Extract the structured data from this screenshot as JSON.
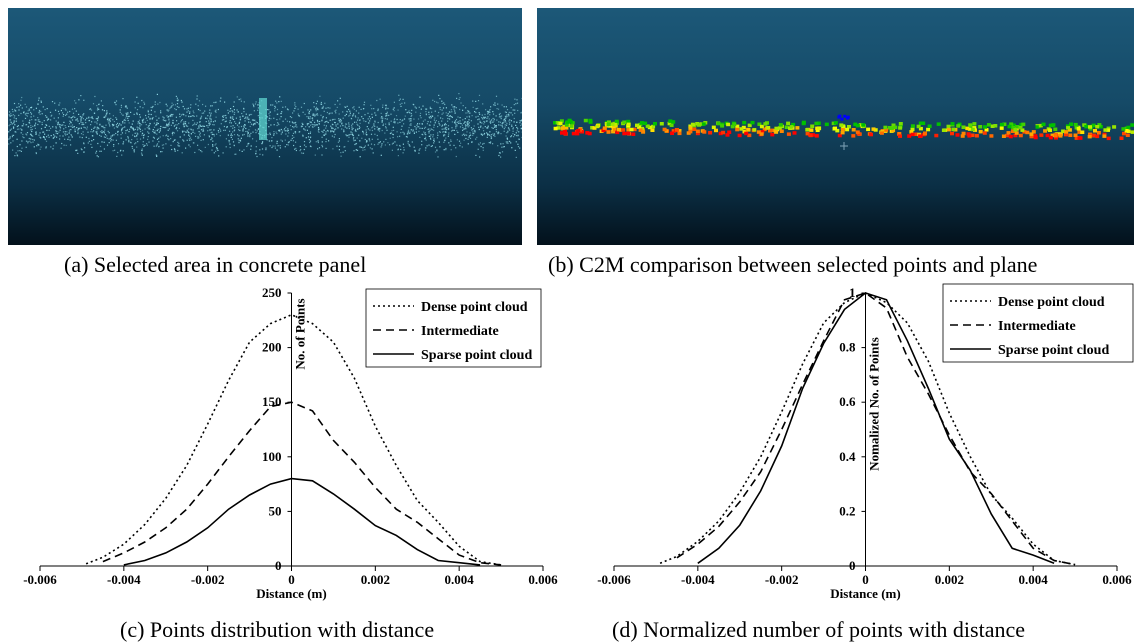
{
  "captions": {
    "a": "(a) Selected area in concrete panel",
    "b": "(b) C2M comparison between selected points and plane",
    "c": "(c) Points distribution with distance",
    "d": "(d) Normalized number of points with distance"
  },
  "colors": {
    "sky_top": "#1c5878",
    "sky_bottom": "#03111b",
    "point_cloud": "#8fd6e2",
    "selection": "#5fd6d0",
    "c2m_scale": [
      "#0000ff",
      "#00c000",
      "#ffff00",
      "#ff0000"
    ]
  },
  "chart_data": [
    {
      "type": "line",
      "xlabel": "Distance (m)",
      "ylabel": "No. of Points",
      "xlim": [
        -0.006,
        0.006
      ],
      "ylim": [
        0,
        250
      ],
      "xticks": [
        -0.006,
        -0.004,
        -0.002,
        0,
        0.002,
        0.004,
        0.006
      ],
      "xtick_labels": [
        "-0.006",
        "-0.004",
        "-0.002",
        "0",
        "0.002",
        "0.004",
        "0.006"
      ],
      "yticks": [
        0,
        50,
        100,
        150,
        200,
        250
      ],
      "ytick_labels": [
        "0",
        "50",
        "100",
        "150",
        "200",
        "250"
      ],
      "legend_position": "top-right",
      "grid": false,
      "series": [
        {
          "name": "Dense point cloud",
          "style": "dotted",
          "x": [
            -0.0049,
            -0.0045,
            -0.004,
            -0.0035,
            -0.003,
            -0.0025,
            -0.002,
            -0.0015,
            -0.001,
            -0.0005,
            0,
            0.0005,
            0.001,
            0.0015,
            0.002,
            0.0025,
            0.003,
            0.0035,
            0.004,
            0.0045,
            0.005
          ],
          "y": [
            2,
            8,
            20,
            38,
            62,
            92,
            130,
            170,
            205,
            222,
            230,
            222,
            205,
            172,
            128,
            92,
            60,
            40,
            18,
            4,
            1
          ]
        },
        {
          "name": "Intermediate",
          "style": "dashed",
          "x": [
            -0.0045,
            -0.004,
            -0.0035,
            -0.003,
            -0.0025,
            -0.002,
            -0.0015,
            -0.001,
            -0.0005,
            0,
            0.0005,
            0.001,
            0.0015,
            0.002,
            0.0025,
            0.003,
            0.0035,
            0.004,
            0.0045,
            0.005
          ],
          "y": [
            4,
            12,
            22,
            35,
            52,
            75,
            100,
            124,
            146,
            150,
            142,
            115,
            95,
            72,
            52,
            40,
            25,
            10,
            3,
            1
          ]
        },
        {
          "name": "Sparse point cloud",
          "style": "solid",
          "x": [
            -0.004,
            -0.0035,
            -0.003,
            -0.0025,
            -0.002,
            -0.0015,
            -0.001,
            -0.0005,
            0,
            0.0005,
            0.001,
            0.0015,
            0.002,
            0.0025,
            0.003,
            0.0035,
            0.004,
            0.0045
          ],
          "y": [
            1,
            5,
            12,
            22,
            35,
            52,
            65,
            75,
            80,
            78,
            66,
            52,
            37,
            28,
            15,
            5,
            3,
            1
          ]
        }
      ]
    },
    {
      "type": "line",
      "xlabel": "Distance (m)",
      "ylabel": "Nomalized No. of Points",
      "xlim": [
        -0.006,
        0.006
      ],
      "ylim": [
        0,
        1
      ],
      "xticks": [
        -0.006,
        -0.004,
        -0.002,
        0,
        0.002,
        0.004,
        0.006
      ],
      "xtick_labels": [
        "-0.006",
        "-0.004",
        "-0.002",
        "0",
        "0.002",
        "0.004",
        "0.006"
      ],
      "yticks": [
        0,
        0.2,
        0.4,
        0.6,
        0.8,
        1
      ],
      "ytick_labels": [
        "0",
        "0.2",
        "0.4",
        "0.6",
        "0.8",
        "1"
      ],
      "legend_position": "top-right",
      "grid": false,
      "series": [
        {
          "name": "Dense point cloud",
          "style": "dotted",
          "x": [
            -0.0049,
            -0.0045,
            -0.004,
            -0.0035,
            -0.003,
            -0.0025,
            -0.002,
            -0.0015,
            -0.001,
            -0.0005,
            0,
            0.0005,
            0.001,
            0.0015,
            0.002,
            0.0025,
            0.003,
            0.0035,
            0.004,
            0.0045,
            0.005
          ],
          "y": [
            0.01,
            0.035,
            0.09,
            0.165,
            0.27,
            0.4,
            0.565,
            0.74,
            0.89,
            0.965,
            1.0,
            0.965,
            0.89,
            0.75,
            0.56,
            0.4,
            0.26,
            0.175,
            0.08,
            0.02,
            0.005
          ]
        },
        {
          "name": "Intermediate",
          "style": "dashed",
          "x": [
            -0.0045,
            -0.004,
            -0.0035,
            -0.003,
            -0.0025,
            -0.002,
            -0.0015,
            -0.001,
            -0.0005,
            0,
            0.0005,
            0.001,
            0.0015,
            0.002,
            0.0025,
            0.003,
            0.0035,
            0.004,
            0.0045,
            0.005
          ],
          "y": [
            0.03,
            0.08,
            0.145,
            0.235,
            0.345,
            0.5,
            0.665,
            0.825,
            0.975,
            1.0,
            0.945,
            0.765,
            0.63,
            0.48,
            0.345,
            0.265,
            0.165,
            0.065,
            0.02,
            0.005
          ]
        },
        {
          "name": "Sparse point cloud",
          "style": "solid",
          "x": [
            -0.004,
            -0.0035,
            -0.003,
            -0.0025,
            -0.002,
            -0.0015,
            -0.001,
            -0.0005,
            0,
            0.0005,
            0.001,
            0.0015,
            0.002,
            0.0025,
            0.003,
            0.0035,
            0.004,
            0.0045
          ],
          "y": [
            0.01,
            0.065,
            0.15,
            0.275,
            0.44,
            0.65,
            0.815,
            0.94,
            1.0,
            0.975,
            0.825,
            0.65,
            0.465,
            0.35,
            0.19,
            0.065,
            0.04,
            0.01
          ]
        }
      ]
    }
  ]
}
